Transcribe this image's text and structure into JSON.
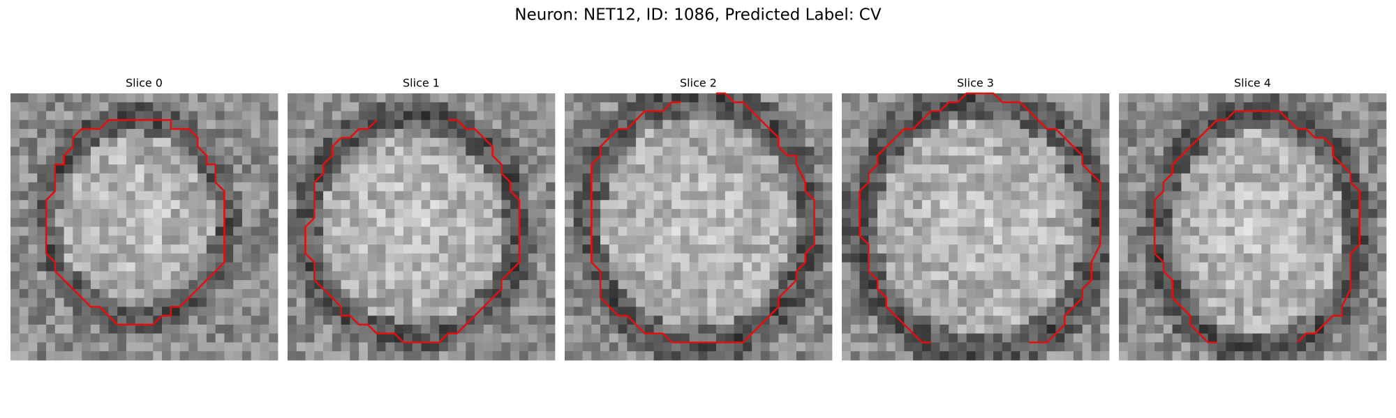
{
  "title": "Neuron: NET12, ID: 1086, Predicted Label: CV",
  "panels": [
    {
      "title": "Slice 0"
    },
    {
      "title": "Slice 1"
    },
    {
      "title": "Slice 2"
    },
    {
      "title": "Slice 3"
    },
    {
      "title": "Slice 4"
    }
  ]
}
